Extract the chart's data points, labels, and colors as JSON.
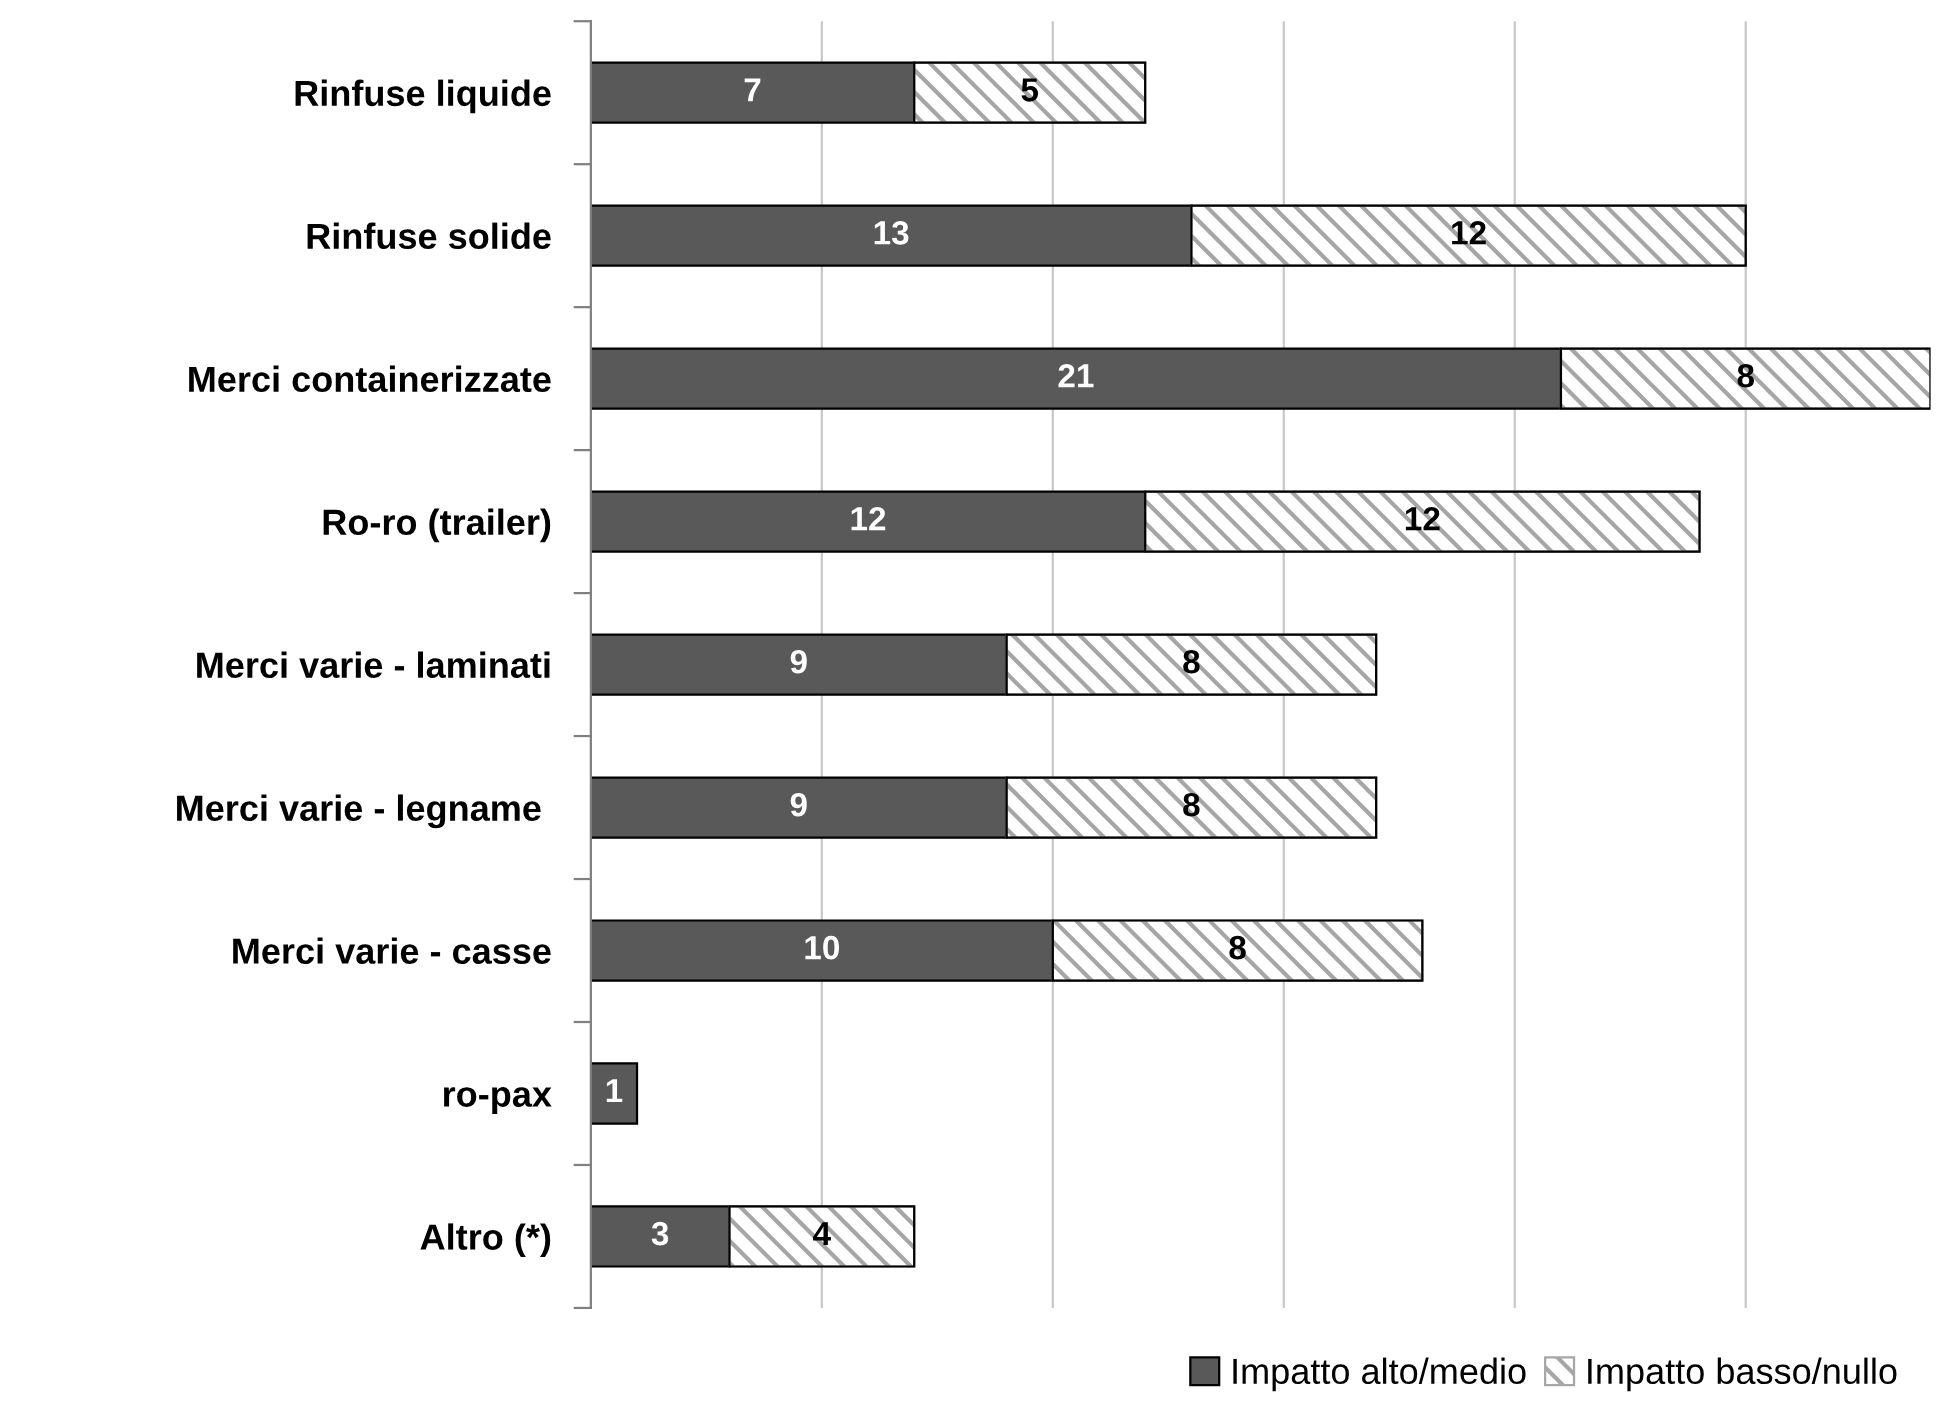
{
  "chart_data": {
    "type": "bar",
    "orientation": "horizontal",
    "stacked": true,
    "data_labels": true,
    "legend": "bottom right",
    "grid": "x",
    "tick_labels": "y",
    "categories": [
      "Rinfuse liquide",
      "Rinfuse solide",
      "Merci containerizzate",
      "Ro-ro (trailer)",
      "Merci varie - laminati",
      "Merci varie - legname ",
      "Merci varie - casse",
      "ro-pax",
      "Altro (*)"
    ],
    "xlim": [
      0,
      29
    ],
    "xticks": [
      {
        "value": 0,
        "label": null
      },
      {
        "value": 5,
        "label": null
      },
      {
        "value": 10,
        "label": null
      },
      {
        "value": 15,
        "label": null
      },
      {
        "value": 20,
        "label": null
      },
      {
        "value": 25,
        "label": null
      }
    ],
    "series": [
      {
        "name": "Impatto alto/medio",
        "color": "#595959",
        "values": [
          7,
          13,
          21,
          12,
          9,
          9,
          10,
          1,
          3
        ]
      },
      {
        "name": "Impatto basso/nullo",
        "color": "#a6a6a6",
        "values": [
          5,
          12,
          8,
          12,
          8,
          8,
          8,
          null,
          4
        ]
      }
    ]
  }
}
